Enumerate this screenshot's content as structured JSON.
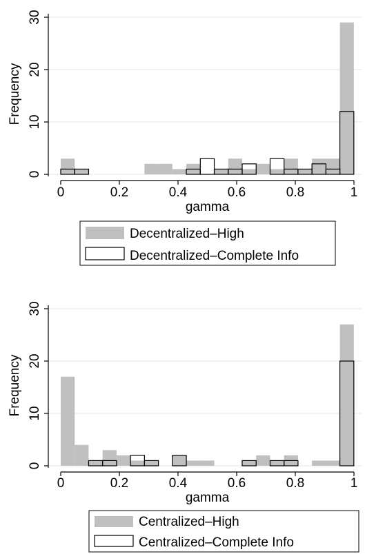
{
  "chart_data": [
    {
      "type": "bar",
      "title": "",
      "xlabel": "gamma",
      "ylabel": "Frequency",
      "xlim": [
        0,
        1
      ],
      "ylim": [
        0,
        30
      ],
      "x_ticks": [
        "0",
        "0.2",
        "0.4",
        "0.6",
        "0.8",
        "1"
      ],
      "y_ticks": [
        "0",
        "10",
        "20",
        "30"
      ],
      "bin_width": 0.0476,
      "grid": "horizontal",
      "legend_position": "bottom",
      "series": [
        {
          "name": "Decentralized–High",
          "style": "filled",
          "color": "#c0c0c0",
          "values": [
            3,
            1,
            0,
            0,
            0,
            0,
            2,
            2,
            1,
            2,
            0,
            1,
            3,
            1,
            2,
            1,
            3,
            1,
            3,
            3,
            29
          ]
        },
        {
          "name": "Decentralized–Complete Info",
          "style": "outline",
          "color": "#000000",
          "values": [
            1,
            1,
            0,
            0,
            0,
            0,
            0,
            0,
            0,
            1,
            3,
            1,
            1,
            2,
            0,
            3,
            1,
            1,
            2,
            1,
            12
          ]
        }
      ]
    },
    {
      "type": "bar",
      "title": "",
      "xlabel": "gamma",
      "ylabel": "Frequency",
      "xlim": [
        0,
        1
      ],
      "ylim": [
        0,
        30
      ],
      "x_ticks": [
        "0",
        "0.2",
        "0.4",
        "0.6",
        "0.8",
        "1"
      ],
      "y_ticks": [
        "0",
        "10",
        "20",
        "30"
      ],
      "bin_width": 0.0476,
      "grid": "horizontal",
      "legend_position": "bottom",
      "series": [
        {
          "name": "Centralized–High",
          "style": "filled",
          "color": "#c0c0c0",
          "values": [
            17,
            4,
            1,
            3,
            2,
            1,
            1,
            0,
            2,
            1,
            1,
            0,
            0,
            1,
            2,
            1,
            2,
            0,
            1,
            1,
            27
          ]
        },
        {
          "name": "Centralized–Complete Info",
          "style": "outline",
          "color": "#000000",
          "values": [
            0,
            0,
            1,
            1,
            0,
            2,
            1,
            0,
            2,
            0,
            0,
            0,
            0,
            1,
            0,
            1,
            1,
            0,
            0,
            0,
            20
          ]
        }
      ]
    }
  ]
}
